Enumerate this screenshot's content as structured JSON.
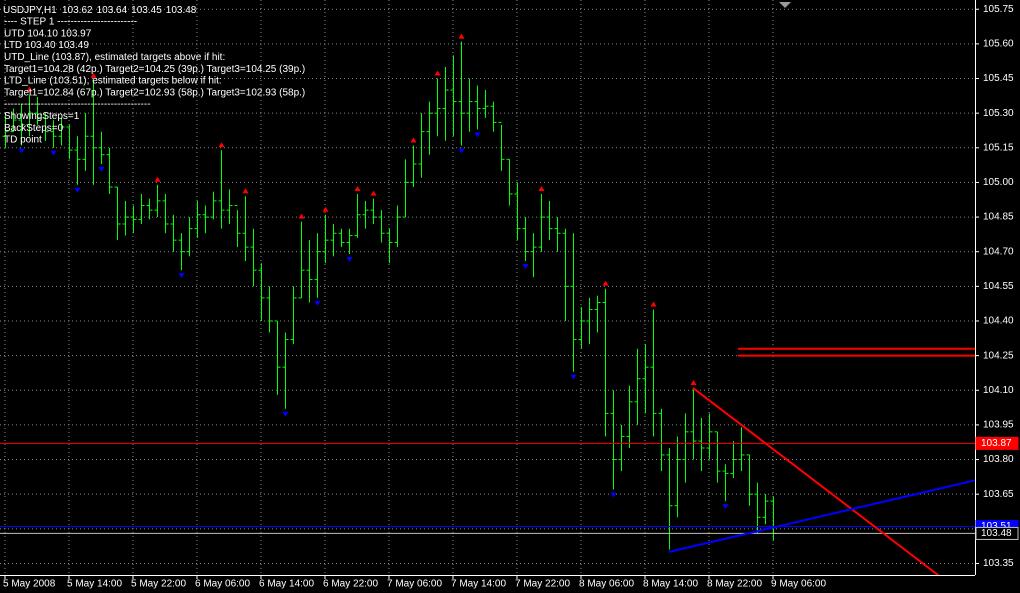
{
  "chart_data": {
    "type": "ohlc",
    "symbol": "USDJPY,H1",
    "categories": [
      "5 May 2008",
      null,
      null,
      null,
      null,
      null,
      null,
      null,
      "5 May 14:00",
      null,
      null,
      null,
      null,
      null,
      null,
      null,
      "5 May 22:00",
      null,
      null,
      null,
      null,
      null,
      null,
      null,
      "6 May 06:00",
      null,
      null,
      null,
      null,
      null,
      null,
      null,
      "6 May 14:00",
      null,
      null,
      null,
      null,
      null,
      null,
      null,
      "6 May 22:00",
      null,
      null,
      null,
      null,
      null,
      null,
      null,
      "7 May 06:00",
      null,
      null,
      null,
      null,
      null,
      null,
      null,
      "7 May 14:00",
      null,
      null,
      null,
      null,
      null,
      null,
      null,
      "7 May 22:00",
      null,
      null,
      null,
      null,
      null,
      null,
      null,
      "8 May 06:00",
      null,
      null,
      null,
      null,
      null,
      null,
      null,
      "8 May 14:00",
      null,
      null,
      null,
      null,
      null,
      null,
      null,
      "8 May 22:00",
      null,
      null,
      null,
      null,
      null,
      null,
      null,
      "9 May 06:00"
    ],
    "open": [
      105.2,
      105.22,
      105.27,
      105.25,
      105.3,
      105.28,
      105.22,
      105.2,
      105.24,
      105.14,
      105.1,
      105.2,
      105.15,
      105.12,
      104.98,
      104.82,
      104.85,
      104.84,
      104.9,
      104.88,
      104.92,
      104.82,
      104.75,
      104.7,
      104.8,
      104.86,
      104.85,
      104.92,
      104.88,
      104.9,
      104.78,
      104.72,
      104.62,
      104.5,
      104.4,
      104.2,
      104.32,
      104.5,
      104.62,
      104.58,
      104.7,
      104.75,
      104.78,
      104.74,
      104.77,
      104.86,
      104.88,
      104.85,
      104.78,
      104.74,
      104.85,
      105.0,
      105.08,
      105.22,
      105.3,
      105.32,
      105.4,
      105.35,
      105.3,
      105.35,
      105.32,
      105.33,
      105.26,
      105.1,
      104.95,
      104.8,
      104.7,
      104.72,
      104.85,
      104.8,
      104.78,
      104.55,
      104.32,
      104.4,
      104.45,
      104.48,
      104.0,
      103.8,
      103.9,
      104.05,
      104.15,
      104.2,
      104.0,
      103.82,
      103.6,
      103.8,
      103.92,
      103.88,
      103.85,
      103.92,
      103.75,
      103.74,
      103.8,
      103.82,
      103.65,
      103.55,
      103.62
    ],
    "high": [
      105.3,
      105.32,
      105.34,
      105.38,
      105.37,
      105.3,
      105.27,
      105.28,
      105.25,
      105.2,
      105.3,
      105.44,
      105.22,
      105.15,
      104.98,
      104.92,
      104.9,
      104.95,
      104.93,
      104.99,
      104.95,
      104.86,
      104.78,
      104.85,
      104.92,
      104.9,
      104.96,
      105.14,
      104.97,
      104.88,
      104.94,
      104.8,
      104.65,
      104.55,
      104.4,
      104.35,
      104.55,
      104.83,
      104.75,
      104.78,
      104.86,
      104.82,
      104.8,
      104.8,
      104.95,
      104.92,
      104.93,
      104.88,
      104.8,
      104.9,
      105.1,
      105.16,
      105.3,
      105.35,
      105.45,
      105.5,
      105.55,
      105.61,
      105.45,
      105.42,
      105.4,
      105.35,
      105.25,
      105.1,
      105.0,
      104.85,
      104.78,
      104.95,
      104.92,
      104.85,
      104.8,
      104.78,
      104.46,
      104.5,
      104.51,
      104.54,
      104.1,
      103.95,
      104.12,
      104.28,
      104.3,
      104.45,
      104.02,
      103.85,
      103.9,
      104.0,
      104.11,
      103.98,
      104.0,
      103.92,
      103.78,
      103.88,
      103.94,
      103.82,
      103.7,
      103.65,
      103.64
    ],
    "low": [
      105.15,
      105.22,
      105.16,
      105.2,
      105.25,
      105.18,
      105.15,
      105.16,
      105.1,
      104.99,
      105.05,
      104.99,
      105.08,
      104.95,
      104.75,
      104.77,
      104.78,
      104.82,
      104.84,
      104.85,
      104.78,
      104.7,
      104.62,
      104.68,
      104.76,
      104.78,
      104.84,
      104.8,
      104.82,
      104.72,
      104.66,
      104.55,
      104.4,
      104.35,
      104.08,
      104.02,
      104.3,
      104.5,
      104.48,
      104.5,
      104.65,
      104.68,
      104.72,
      104.69,
      104.76,
      104.8,
      104.82,
      104.74,
      104.65,
      104.72,
      104.85,
      104.98,
      105.02,
      105.12,
      105.2,
      105.18,
      105.2,
      105.16,
      105.22,
      105.23,
      105.28,
      105.22,
      105.05,
      104.9,
      104.75,
      104.66,
      104.59,
      104.7,
      104.75,
      104.7,
      104.4,
      104.18,
      104.28,
      104.3,
      104.35,
      103.9,
      103.67,
      103.75,
      103.85,
      103.95,
      104.0,
      103.9,
      103.75,
      103.41,
      103.55,
      103.7,
      103.8,
      103.75,
      103.8,
      103.7,
      103.62,
      103.72,
      103.75,
      103.6,
      103.48,
      103.52,
      103.45
    ],
    "close": [
      105.22,
      105.27,
      105.25,
      105.3,
      105.28,
      105.22,
      105.2,
      105.24,
      105.14,
      105.1,
      105.2,
      105.15,
      105.12,
      104.98,
      104.82,
      104.85,
      104.84,
      104.9,
      104.88,
      104.92,
      104.82,
      104.75,
      104.7,
      104.8,
      104.86,
      104.85,
      104.92,
      104.88,
      104.9,
      104.78,
      104.72,
      104.62,
      104.5,
      104.4,
      104.2,
      104.32,
      104.5,
      104.62,
      104.58,
      104.7,
      104.75,
      104.78,
      104.74,
      104.77,
      104.86,
      104.88,
      104.85,
      104.78,
      104.74,
      104.85,
      105.0,
      105.08,
      105.22,
      105.3,
      105.32,
      105.4,
      105.35,
      105.3,
      105.35,
      105.32,
      105.33,
      105.26,
      105.1,
      104.95,
      104.8,
      104.7,
      104.72,
      104.85,
      104.8,
      104.78,
      104.55,
      104.32,
      104.4,
      104.45,
      104.48,
      104.0,
      103.8,
      103.9,
      104.05,
      104.15,
      104.2,
      104.0,
      103.82,
      103.6,
      103.8,
      103.92,
      103.88,
      103.85,
      103.92,
      103.75,
      103.74,
      103.8,
      103.82,
      103.65,
      103.55,
      103.62,
      103.48
    ],
    "bar_color": "#00ff00",
    "up_points": [
      3,
      11,
      19,
      27,
      30,
      37,
      40,
      44,
      46,
      51,
      54,
      57,
      67,
      75,
      81,
      86
    ],
    "up_color": "#ff0000",
    "down_points": [
      2,
      6,
      9,
      12,
      22,
      35,
      39,
      43,
      57,
      59,
      65,
      71,
      76,
      90
    ],
    "down_color": "#0000ff",
    "hlines": [
      {
        "value": 103.87,
        "label": "103.87",
        "color": "#ff0000"
      },
      {
        "value": 103.51,
        "label": "103.51",
        "color": "#0000ff"
      }
    ],
    "bid_line": {
      "value": 103.48,
      "label": "103.48",
      "color": "#c0c0c0"
    },
    "target_lines": {
      "color": "#ff0000",
      "values": [
        104.28,
        104.25
      ]
    },
    "trendlines": [
      {
        "color": "#ff0000",
        "x": [
          86,
          117
        ],
        "y": [
          104.11,
          103.29
        ]
      },
      {
        "color": "#0000ff",
        "x": [
          83,
          121.25
        ],
        "y": [
          103.4,
          103.71
        ]
      }
    ],
    "ylim": [
      103.3,
      105.79
    ],
    "yticks": [
      {
        "value": 105.75,
        "label": "105.75"
      },
      {
        "value": 105.6,
        "label": "105.60"
      },
      {
        "value": 105.45,
        "label": "105.45"
      },
      {
        "value": 105.3,
        "label": "105.30"
      },
      {
        "value": 105.15,
        "label": "105.15"
      },
      {
        "value": 105,
        "label": "105.00"
      },
      {
        "value": 104.85,
        "label": "104.85"
      },
      {
        "value": 104.7,
        "label": "104.70"
      },
      {
        "value": 104.55,
        "label": "104.55"
      },
      {
        "value": 104.4,
        "label": "104.40"
      },
      {
        "value": 104.25,
        "label": "104.25"
      },
      {
        "value": 104.1,
        "label": "104.10"
      },
      {
        "value": 103.95,
        "label": "103.95"
      },
      {
        "value": 103.8,
        "label": "103.80"
      },
      {
        "value": 103.65,
        "label": "103.65"
      },
      {
        "value": 103.5,
        "label": "103.50"
      },
      {
        "value": 103.35,
        "label": "103.35"
      }
    ],
    "grid": true,
    "text_lines": [
      "----    STEP 1    ------------------------",
      "UTD  104.10    103.97",
      "LTD  103.40    103.49",
      "UTD_Line (103.87), estimated targets above if hit:",
      "Target1=104.28 (42p.) Target2=104.25 (39p.) Target3=104.25 (39p.)",
      "LTD_Line (103.51), estimated targets below if hit:",
      "Target1=102.84 (67p.) Target2=102.93 (58p.) Target3=102.93 (58p.)",
      "--------------------------------------------",
      "ShowingSteps=1",
      "BackSteps=0",
      "TD point"
    ]
  }
}
